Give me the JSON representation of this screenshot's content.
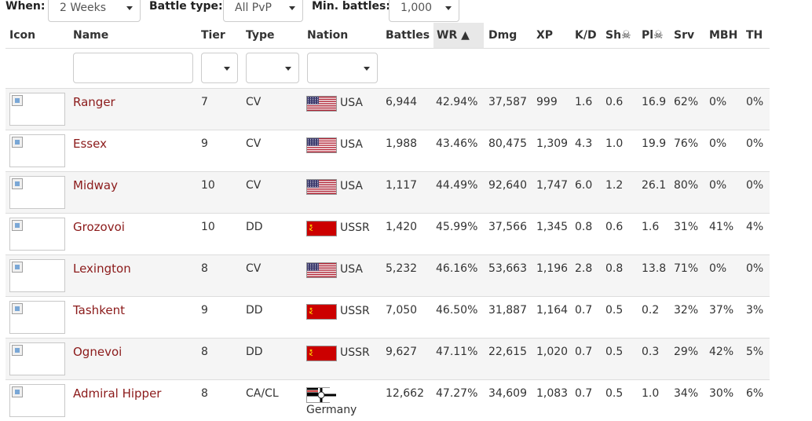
{
  "filters": {
    "when_label": "When:",
    "when_value": "2 Weeks",
    "battle_type_label": "Battle type:",
    "battle_type_value": "All PvP",
    "min_battles_label": "Min. battles:",
    "min_battles_value": "1,000"
  },
  "columns": {
    "icon": "Icon",
    "name": "Name",
    "tier": "Tier",
    "type": "Type",
    "nation": "Nation",
    "battles": "Battles",
    "wr": "WR ▲",
    "dmg": "Dmg",
    "xp": "XP",
    "kd": "K/D",
    "sh": "Sh☠",
    "pl": "Pl☠",
    "srv": "Srv",
    "mbh": "MBH",
    "th": "TH"
  },
  "colors": {
    "link": "#8b1a1a",
    "row_alt": "#f5f5f5",
    "border": "#dddddd"
  },
  "rows": [
    {
      "icon": "broken-image-icon",
      "name": "Ranger",
      "tier": "7",
      "type": "CV",
      "flag": "usa-flag",
      "nation": "USA",
      "battles": "6,944",
      "wr": "42.94%",
      "dmg": "37,587",
      "xp": "999",
      "kd": "1.6",
      "sh": "0.6",
      "pl": "16.9",
      "srv": "62%",
      "mbh": "0%",
      "th": "0%"
    },
    {
      "icon": "broken-image-icon",
      "name": "Essex",
      "tier": "9",
      "type": "CV",
      "flag": "usa-flag",
      "nation": "USA",
      "battles": "1,988",
      "wr": "43.46%",
      "dmg": "80,475",
      "xp": "1,309",
      "kd": "4.3",
      "sh": "1.0",
      "pl": "19.9",
      "srv": "76%",
      "mbh": "0%",
      "th": "0%"
    },
    {
      "icon": "broken-image-icon",
      "name": "Midway",
      "tier": "10",
      "type": "CV",
      "flag": "usa-flag",
      "nation": "USA",
      "battles": "1,117",
      "wr": "44.49%",
      "dmg": "92,640",
      "xp": "1,747",
      "kd": "6.0",
      "sh": "1.2",
      "pl": "26.1",
      "srv": "80%",
      "mbh": "0%",
      "th": "0%"
    },
    {
      "icon": "broken-image-icon",
      "name": "Grozovoi",
      "tier": "10",
      "type": "DD",
      "flag": "ussr-flag",
      "nation": "USSR",
      "battles": "1,420",
      "wr": "45.99%",
      "dmg": "37,566",
      "xp": "1,345",
      "kd": "0.8",
      "sh": "0.6",
      "pl": "1.6",
      "srv": "31%",
      "mbh": "41%",
      "th": "4%"
    },
    {
      "icon": "broken-image-icon",
      "name": "Lexington",
      "tier": "8",
      "type": "CV",
      "flag": "usa-flag",
      "nation": "USA",
      "battles": "5,232",
      "wr": "46.16%",
      "dmg": "53,663",
      "xp": "1,196",
      "kd": "2.8",
      "sh": "0.8",
      "pl": "13.8",
      "srv": "71%",
      "mbh": "0%",
      "th": "0%"
    },
    {
      "icon": "broken-image-icon",
      "name": "Tashkent",
      "tier": "9",
      "type": "DD",
      "flag": "ussr-flag",
      "nation": "USSR",
      "battles": "7,050",
      "wr": "46.50%",
      "dmg": "31,887",
      "xp": "1,164",
      "kd": "0.7",
      "sh": "0.5",
      "pl": "0.2",
      "srv": "32%",
      "mbh": "37%",
      "th": "3%"
    },
    {
      "icon": "broken-image-icon",
      "name": "Ognevoi",
      "tier": "8",
      "type": "DD",
      "flag": "ussr-flag",
      "nation": "USSR",
      "battles": "9,627",
      "wr": "47.11%",
      "dmg": "22,615",
      "xp": "1,020",
      "kd": "0.7",
      "sh": "0.5",
      "pl": "0.3",
      "srv": "29%",
      "mbh": "42%",
      "th": "5%"
    },
    {
      "icon": "broken-image-icon",
      "name": "Admiral Hipper",
      "tier": "8",
      "type": "CA/CL",
      "flag": "germany-flag",
      "nation": "Germany",
      "battles": "12,662",
      "wr": "47.27%",
      "dmg": "34,609",
      "xp": "1,083",
      "kd": "0.7",
      "sh": "0.5",
      "pl": "1.0",
      "srv": "34%",
      "mbh": "30%",
      "th": "6%"
    }
  ]
}
